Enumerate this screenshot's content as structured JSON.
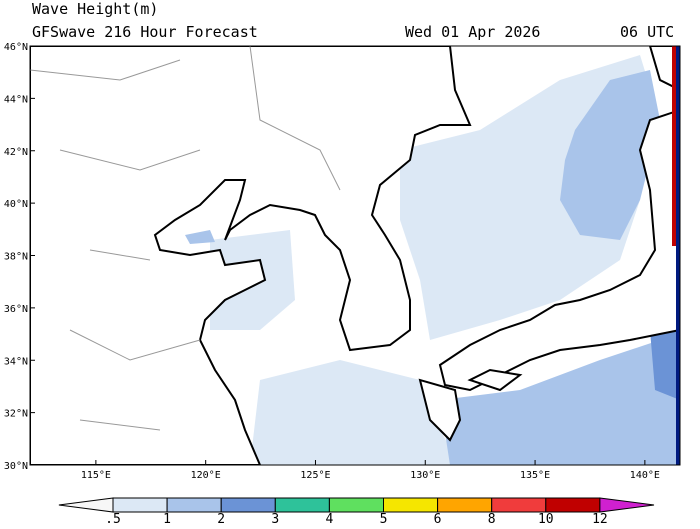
{
  "header": {
    "title": "Wave Height(m)",
    "subtitle": "GFSwave 216 Hour Forecast",
    "date": "Wed 01 Apr 2026",
    "time": "06 UTC"
  },
  "map": {
    "xlim": [
      112,
      141.6
    ],
    "ylim": [
      30,
      46
    ],
    "lat_ticks": [
      {
        "value": 30,
        "label": "30°N"
      },
      {
        "value": 32,
        "label": "32°N"
      },
      {
        "value": 34,
        "label": "34°N"
      },
      {
        "value": 36,
        "label": "36°N"
      },
      {
        "value": 38,
        "label": "38°N"
      },
      {
        "value": 40,
        "label": "40°N"
      },
      {
        "value": 42,
        "label": "42°N"
      },
      {
        "value": 44,
        "label": "44°N"
      },
      {
        "value": 46,
        "label": "46°N"
      }
    ],
    "lon_ticks": [
      {
        "value": 115,
        "label": "115°E"
      },
      {
        "value": 120,
        "label": "120°E"
      },
      {
        "value": 125,
        "label": "125°E"
      },
      {
        "value": 130,
        "label": "130°E"
      },
      {
        "value": 135,
        "label": "135°E"
      },
      {
        "value": 140,
        "label": "140°E"
      }
    ]
  },
  "colorbar": {
    "levels": [
      {
        "value": 0.5,
        "label": ".5"
      },
      1,
      2,
      3,
      4,
      5,
      6,
      8,
      10,
      12
    ],
    "colors": [
      "#f7f7f7",
      "#dce8f5",
      "#a9c4ea",
      "#6b93d6",
      "#2ec29a",
      "#5fe05f",
      "#f5e600",
      "#ffa500",
      "#f03c3c",
      "#c00000",
      "#d020d0"
    ]
  }
}
